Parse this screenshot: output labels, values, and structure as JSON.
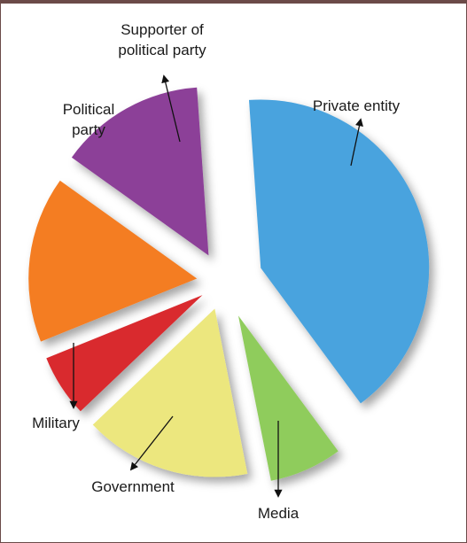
{
  "chart_data": {
    "type": "pie",
    "exploded": true,
    "title": "",
    "legend": "none (labels with arrows)",
    "slices": [
      {
        "label": "Private entity",
        "value": 41,
        "color": "#4aa3de"
      },
      {
        "label": "Media",
        "value": 7,
        "color": "#8fcc5c"
      },
      {
        "label": "Government",
        "value": 16,
        "color": "#ece77e"
      },
      {
        "label": "Military",
        "value": 6,
        "color": "#d92b2e"
      },
      {
        "label": "Political party",
        "value": 16,
        "color": "#f47d22"
      },
      {
        "label": "Supporter of political party",
        "value": 14,
        "color": "#8c3f98"
      }
    ],
    "label_lines": {
      "Supporter of political party": [
        "Supporter of",
        "political party"
      ],
      "Political party": [
        "Political",
        "party"
      ]
    }
  }
}
